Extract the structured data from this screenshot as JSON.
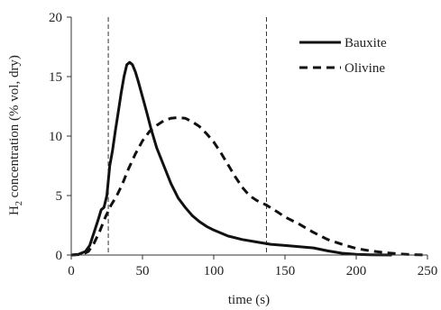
{
  "chart_data": {
    "type": "line",
    "title": "",
    "xlabel": "time (s)",
    "ylabel_main": "H",
    "ylabel_sub": "2",
    "ylabel_rest": " concentration (% vol, dry)",
    "xlim": [
      0,
      250
    ],
    "ylim": [
      0,
      20
    ],
    "x_ticks": [
      0,
      50,
      100,
      150,
      200,
      250
    ],
    "y_ticks": [
      0,
      5,
      10,
      15,
      20
    ],
    "grid": false,
    "legend_position": "top-right",
    "vlines": [
      26,
      137
    ],
    "series": [
      {
        "name": "Bauxite",
        "style": "solid",
        "color": "#111111",
        "points": [
          [
            0,
            0
          ],
          [
            5,
            0.05
          ],
          [
            10,
            0.3
          ],
          [
            13,
            0.8
          ],
          [
            16,
            1.9
          ],
          [
            19,
            3.0
          ],
          [
            21,
            3.8
          ],
          [
            23,
            4.0
          ],
          [
            25,
            5.0
          ],
          [
            27,
            7.5
          ],
          [
            29,
            8.8
          ],
          [
            31,
            10.5
          ],
          [
            33,
            12.0
          ],
          [
            35,
            13.6
          ],
          [
            37,
            15.0
          ],
          [
            39,
            16.0
          ],
          [
            41,
            16.2
          ],
          [
            43,
            16.0
          ],
          [
            45,
            15.4
          ],
          [
            47,
            14.6
          ],
          [
            50,
            13.3
          ],
          [
            53,
            12.0
          ],
          [
            56,
            10.6
          ],
          [
            60,
            9.0
          ],
          [
            65,
            7.5
          ],
          [
            70,
            6.0
          ],
          [
            75,
            4.8
          ],
          [
            80,
            4.0
          ],
          [
            85,
            3.3
          ],
          [
            90,
            2.8
          ],
          [
            95,
            2.4
          ],
          [
            100,
            2.1
          ],
          [
            110,
            1.6
          ],
          [
            120,
            1.3
          ],
          [
            130,
            1.1
          ],
          [
            140,
            0.9
          ],
          [
            150,
            0.8
          ],
          [
            160,
            0.7
          ],
          [
            170,
            0.6
          ],
          [
            180,
            0.35
          ],
          [
            190,
            0.15
          ],
          [
            200,
            0.05
          ],
          [
            210,
            0.02
          ],
          [
            225,
            0.0
          ]
        ]
      },
      {
        "name": "Olivine",
        "style": "dashed",
        "color": "#111111",
        "points": [
          [
            0,
            0
          ],
          [
            8,
            0.05
          ],
          [
            12,
            0.3
          ],
          [
            16,
            1.0
          ],
          [
            20,
            2.0
          ],
          [
            24,
            3.2
          ],
          [
            28,
            4.2
          ],
          [
            32,
            5.0
          ],
          [
            36,
            6.0
          ],
          [
            40,
            7.2
          ],
          [
            45,
            8.5
          ],
          [
            50,
            9.6
          ],
          [
            55,
            10.4
          ],
          [
            60,
            10.9
          ],
          [
            65,
            11.3
          ],
          [
            70,
            11.5
          ],
          [
            75,
            11.55
          ],
          [
            80,
            11.5
          ],
          [
            85,
            11.2
          ],
          [
            90,
            10.8
          ],
          [
            95,
            10.2
          ],
          [
            100,
            9.5
          ],
          [
            105,
            8.6
          ],
          [
            110,
            7.6
          ],
          [
            115,
            6.6
          ],
          [
            120,
            5.7
          ],
          [
            125,
            5.0
          ],
          [
            130,
            4.6
          ],
          [
            137,
            4.2
          ],
          [
            145,
            3.6
          ],
          [
            150,
            3.2
          ],
          [
            160,
            2.6
          ],
          [
            170,
            1.9
          ],
          [
            180,
            1.3
          ],
          [
            190,
            0.9
          ],
          [
            200,
            0.55
          ],
          [
            210,
            0.35
          ],
          [
            220,
            0.2
          ],
          [
            230,
            0.1
          ],
          [
            240,
            0.03
          ],
          [
            250,
            0.0
          ]
        ]
      }
    ]
  }
}
